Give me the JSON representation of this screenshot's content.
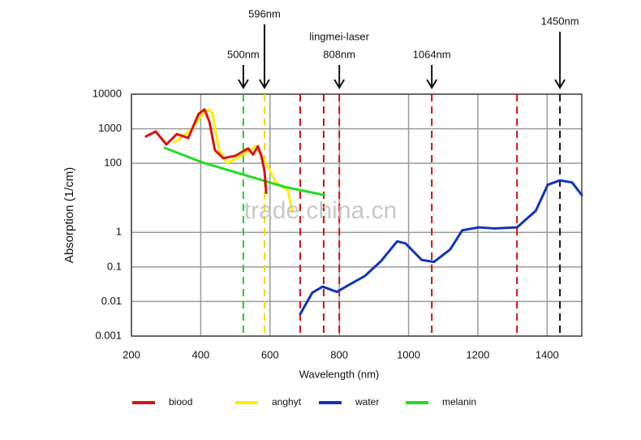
{
  "chart_data": {
    "type": "line",
    "xlabel": "Wavelength (nm)",
    "ylabel": "Absorption (1/cm)",
    "xlim": [
      200,
      1500
    ],
    "xticks": [
      200,
      400,
      600,
      800,
      1000,
      1200,
      1400
    ],
    "ylim": [
      0.001,
      10000
    ],
    "log_y": true,
    "yticks": [
      0.001,
      0.01,
      0.1,
      1,
      100,
      1000,
      10000
    ],
    "grid": true,
    "series": [
      {
        "name": "biood",
        "color": "#dd1111",
        "x": [
          242,
          270,
          301,
          331,
          364,
          394,
          411,
          425,
          441,
          465,
          500,
          537,
          551,
          565,
          575,
          584,
          589
        ],
        "values": [
          600,
          830,
          350,
          700,
          540,
          2700,
          3600,
          1600,
          240,
          140,
          165,
          270,
          180,
          310,
          165,
          62,
          14
        ]
      },
      {
        "name": "anghyt",
        "color": "#ffee00",
        "x": [
          324,
          371,
          406,
          425,
          434,
          453,
          476,
          523,
          558,
          594,
          617,
          652,
          664
        ],
        "values": [
          400,
          900,
          2700,
          3600,
          2700,
          240,
          100,
          180,
          310,
          80,
          28,
          16,
          4
        ]
      },
      {
        "name": "water",
        "color": "#1133bb",
        "x": [
          687,
          722,
          752,
          793,
          832,
          874,
          921,
          967,
          991,
          1038,
          1073,
          1120,
          1155,
          1203,
          1249,
          1313,
          1367,
          1402,
          1437,
          1472,
          1500
        ],
        "values": [
          0.0043,
          0.018,
          0.027,
          0.019,
          0.032,
          0.055,
          0.15,
          0.55,
          0.48,
          0.16,
          0.14,
          0.32,
          1.15,
          1.4,
          1.3,
          1.4,
          4.2,
          24,
          32,
          28,
          12
        ]
      },
      {
        "name": "melanin",
        "color": "#22dd22",
        "x": [
          296,
          406,
          523,
          640,
          757
        ],
        "values": [
          280,
          105,
          47,
          21,
          12
        ]
      }
    ],
    "markers": [
      {
        "value": 523,
        "color": "#22cc22"
      },
      {
        "value": 584,
        "color": "#eedd00"
      },
      {
        "value": 687,
        "color": "#cc1111"
      },
      {
        "value": 755,
        "color": "#cc1111"
      },
      {
        "value": 800,
        "color": "#cc1111"
      },
      {
        "value": 1067,
        "color": "#cc1111"
      },
      {
        "value": 1313,
        "color": "#cc1111"
      },
      {
        "value": 1437,
        "color": "#111111"
      }
    ],
    "annotations": [
      {
        "x": 523,
        "text": [
          "500nm"
        ]
      },
      {
        "x": 584,
        "text": [
          "596nm"
        ]
      },
      {
        "x": 800,
        "text": [
          "lingmei-laser",
          "808nm"
        ]
      },
      {
        "x": 1067,
        "text": [
          "1064nm"
        ]
      },
      {
        "x": 1437,
        "text": [
          "1450nm"
        ]
      }
    ],
    "watermark": "trade.china.cn"
  }
}
